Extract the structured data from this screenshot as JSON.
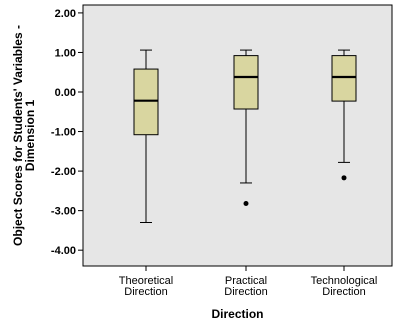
{
  "chart_data": {
    "type": "boxplot",
    "xlabel": "Direction",
    "ylabel_lines": [
      "Object Scores for Students' Variables -",
      "Dimension 1"
    ],
    "ylim": [
      -4.4,
      2.2
    ],
    "yticks": [
      "2.00",
      "1.00",
      "0.00",
      "-1.00",
      "-2.00",
      "-3.00",
      "-4.00"
    ],
    "ytick_values": [
      2,
      1,
      0,
      -1,
      -2,
      -3,
      -4
    ],
    "categories": [
      {
        "label_lines": [
          "Theoretical",
          "Direction"
        ],
        "min": -3.3,
        "q1": -1.08,
        "median": -0.22,
        "q3": 0.58,
        "max": 1.06,
        "outliers": []
      },
      {
        "label_lines": [
          "Practical",
          "Direction"
        ],
        "min": -2.3,
        "q1": -0.43,
        "median": 0.38,
        "q3": 0.92,
        "max": 1.06,
        "outliers": [
          -2.82
        ]
      },
      {
        "label_lines": [
          "Technological",
          "Direction"
        ],
        "min": -1.78,
        "q1": -0.23,
        "median": 0.38,
        "q3": 0.92,
        "max": 1.06,
        "outliers": [
          -2.17
        ]
      }
    ],
    "colors": {
      "plot_bg": "#e6e6e6",
      "box_fill": "#d9d6a0",
      "stroke": "#000000"
    },
    "grid": false,
    "legend": "none"
  }
}
